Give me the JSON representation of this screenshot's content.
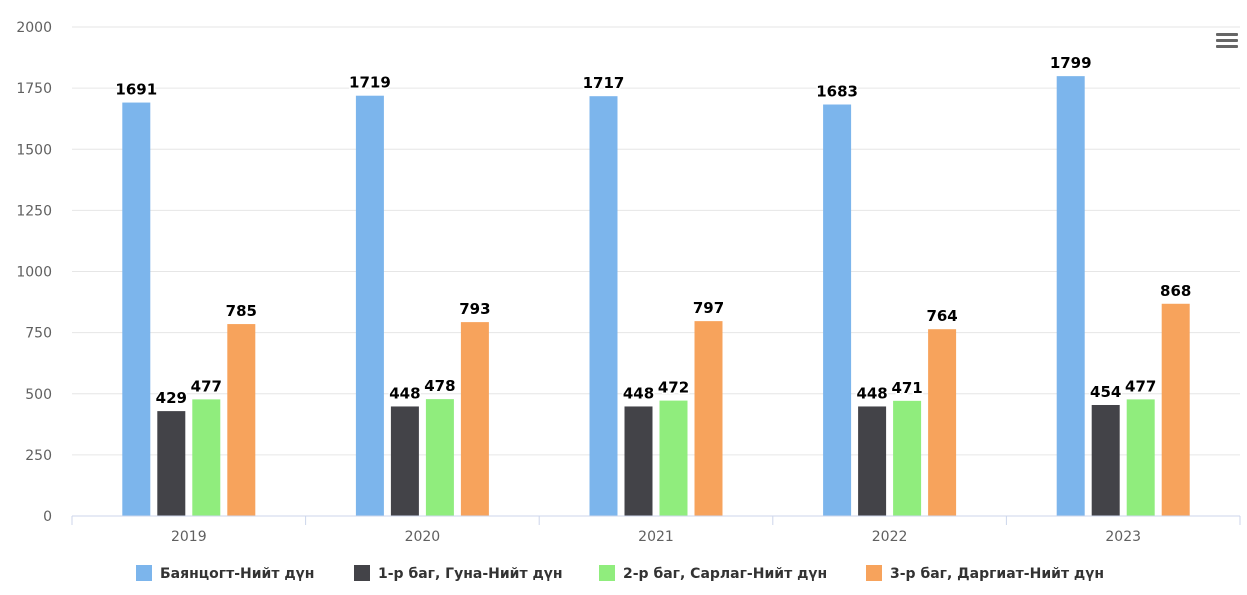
{
  "menu_icon": "hamburger-menu-icon",
  "chart_data": {
    "type": "bar",
    "title": "",
    "xlabel": "",
    "ylabel": "",
    "categories": [
      "2019",
      "2020",
      "2021",
      "2022",
      "2023"
    ],
    "ylim": [
      0,
      2000
    ],
    "yticks": [
      "0",
      "250",
      "500",
      "750",
      "1000",
      "1250",
      "1500",
      "1750",
      "2000"
    ],
    "grid": true,
    "legend_position": "bottom",
    "series": [
      {
        "name": "Баянцогт-Нийт дүн",
        "color": "#7cb5ec",
        "values": [
          1691,
          1719,
          1717,
          1683,
          1799
        ]
      },
      {
        "name": "1-р баг, Гуна-Нийт дүн",
        "color": "#434348",
        "values": [
          429,
          448,
          448,
          448,
          454
        ]
      },
      {
        "name": "2-р баг, Сарлаг-Нийт дүн",
        "color": "#90ed7d",
        "values": [
          477,
          478,
          472,
          471,
          477
        ]
      },
      {
        "name": "3-р баг, Даргиат-Нийт дүн",
        "color": "#f7a35c",
        "values": [
          785,
          793,
          797,
          764,
          868
        ]
      }
    ]
  }
}
